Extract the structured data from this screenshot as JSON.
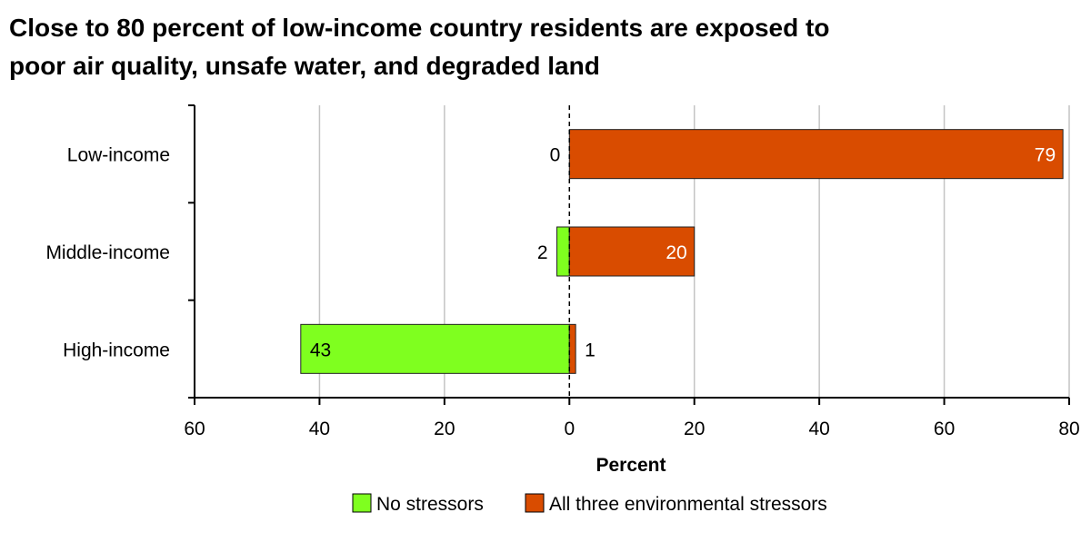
{
  "chart_data": {
    "type": "bar",
    "orientation": "horizontal-diverging",
    "title_lines": [
      "Close to 80 percent of low-income country residents are exposed to",
      "poor air quality, unsafe water, and degraded land"
    ],
    "categories": [
      "Low-income",
      "Middle-income",
      "High-income"
    ],
    "series": [
      {
        "name": "No stressors",
        "values": [
          0,
          2,
          43
        ],
        "direction": "left",
        "color": "#7fff1f"
      },
      {
        "name": "All three environmental stressors",
        "values": [
          79,
          20,
          1
        ],
        "direction": "right",
        "color": "#d94c00"
      }
    ],
    "xlabel": "Percent",
    "xlim": [
      -60,
      80
    ],
    "xticks": [
      -60,
      -40,
      -20,
      0,
      20,
      40,
      60,
      80
    ],
    "xtick_labels": [
      "60",
      "40",
      "20",
      "0",
      "20",
      "40",
      "60",
      "80"
    ],
    "grid": true,
    "zero_line": "dashed",
    "legend_position": "bottom-center"
  }
}
